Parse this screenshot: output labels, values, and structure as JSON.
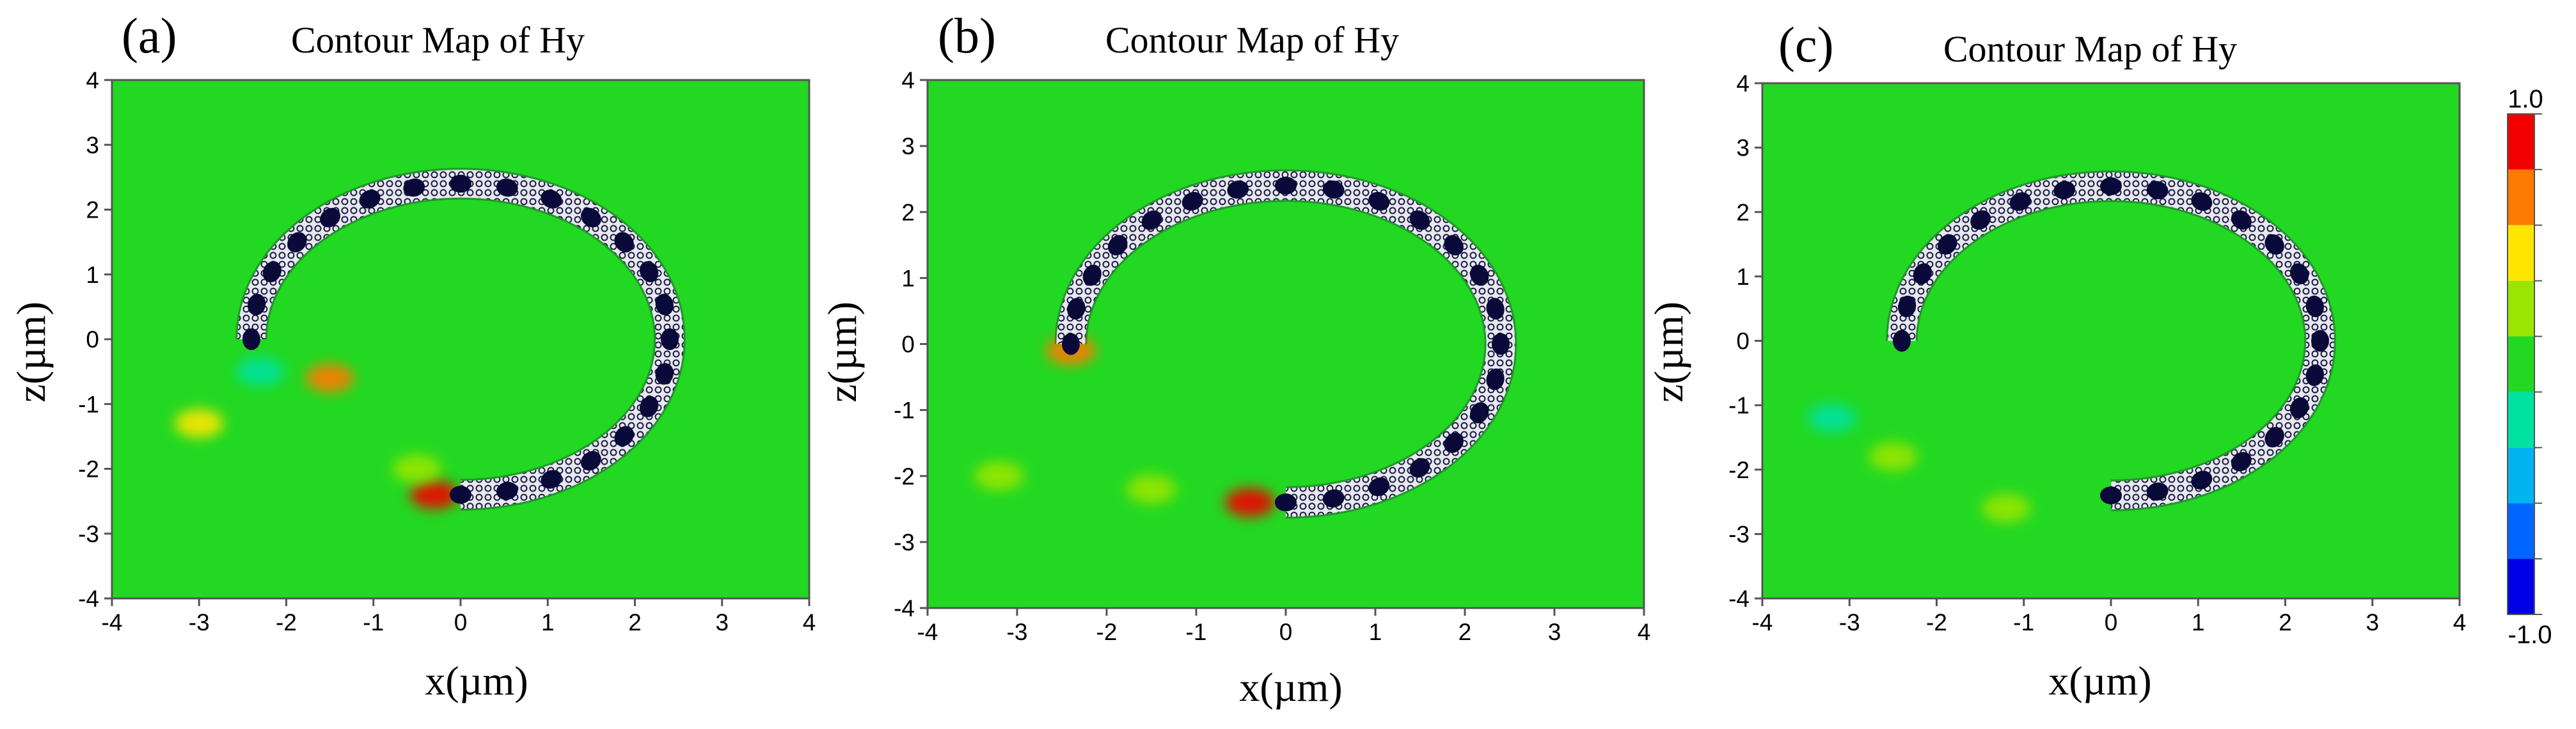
{
  "chart_data": [
    {
      "type": "heatmap",
      "panel_label": "(a)",
      "title": "Contour Map of Hy",
      "xlabel": "x(µm)",
      "ylabel": "z(µm)",
      "xlim": [
        -4,
        4
      ],
      "ylim": [
        -4,
        4
      ],
      "xticks": [
        -4,
        -3,
        -2,
        -1,
        0,
        1,
        2,
        3,
        4
      ],
      "yticks": [
        -4,
        -3,
        -2,
        -1,
        0,
        1,
        2,
        3,
        4
      ],
      "grid": false,
      "background_level": 0.1,
      "ring": {
        "center": [
          0,
          0
        ],
        "radius": 2.4,
        "start_deg": 0,
        "end_deg": 270
      },
      "hot_spots": [
        {
          "x": -0.3,
          "z": -2.4,
          "level": 0.9
        },
        {
          "x": -1.5,
          "z": -0.6,
          "level": 0.6
        },
        {
          "x": -2.3,
          "z": -0.5,
          "level": -0.3
        },
        {
          "x": -0.5,
          "z": -2.0,
          "level": 0.3
        },
        {
          "x": -3.0,
          "z": -1.3,
          "level": 0.4
        }
      ]
    },
    {
      "type": "heatmap",
      "panel_label": "(b)",
      "title": "Contour Map of Hy",
      "xlabel": "x(µm)",
      "ylabel": "z(µm)",
      "xlim": [
        -4,
        4
      ],
      "ylim": [
        -4,
        4
      ],
      "xticks": [
        -4,
        -3,
        -2,
        -1,
        0,
        1,
        2,
        3,
        4
      ],
      "yticks": [
        -4,
        -3,
        -2,
        -1,
        0,
        1,
        2,
        3,
        4
      ],
      "grid": false,
      "background_level": 0.1,
      "ring": {
        "center": [
          0,
          0
        ],
        "radius": 2.4,
        "start_deg": 0,
        "end_deg": 270
      },
      "hot_spots": [
        {
          "x": -0.4,
          "z": -2.4,
          "level": 0.8
        },
        {
          "x": -2.4,
          "z": -0.1,
          "level": 0.7
        },
        {
          "x": -1.5,
          "z": -2.2,
          "level": 0.3
        },
        {
          "x": -3.2,
          "z": -2.0,
          "level": 0.3
        }
      ]
    },
    {
      "type": "heatmap",
      "panel_label": "(c)",
      "title": "Contour Map of Hy",
      "xlabel": "x(µm)",
      "ylabel": "z(µm)",
      "xlim": [
        -4,
        4
      ],
      "ylim": [
        -4,
        4
      ],
      "xticks": [
        -4,
        -3,
        -2,
        -1,
        0,
        1,
        2,
        3,
        4
      ],
      "yticks": [
        -4,
        -3,
        -2,
        -1,
        0,
        1,
        2,
        3,
        4
      ],
      "grid": false,
      "background_level": 0.1,
      "ring": {
        "center": [
          0,
          0
        ],
        "radius": 2.4,
        "start_deg": 0,
        "end_deg": 270
      },
      "hot_spots": [
        {
          "x": -1.2,
          "z": -2.6,
          "level": 0.3
        },
        {
          "x": -2.5,
          "z": -1.8,
          "level": 0.3
        },
        {
          "x": -3.2,
          "z": -1.2,
          "level": -0.3
        }
      ]
    }
  ],
  "colorbar": {
    "max_label": "1.0",
    "min_label": "-1.0",
    "range": [
      -1.0,
      1.0
    ],
    "colors": [
      "#f20000",
      "#ff7a00",
      "#ffe600",
      "#9ae600",
      "#22d822",
      "#00e2a0",
      "#00b4f0",
      "#0066ff",
      "#0000e6"
    ]
  },
  "colors": {
    "ring_dark": "#0a0a3a",
    "ring_light": "#c8c8d8"
  }
}
